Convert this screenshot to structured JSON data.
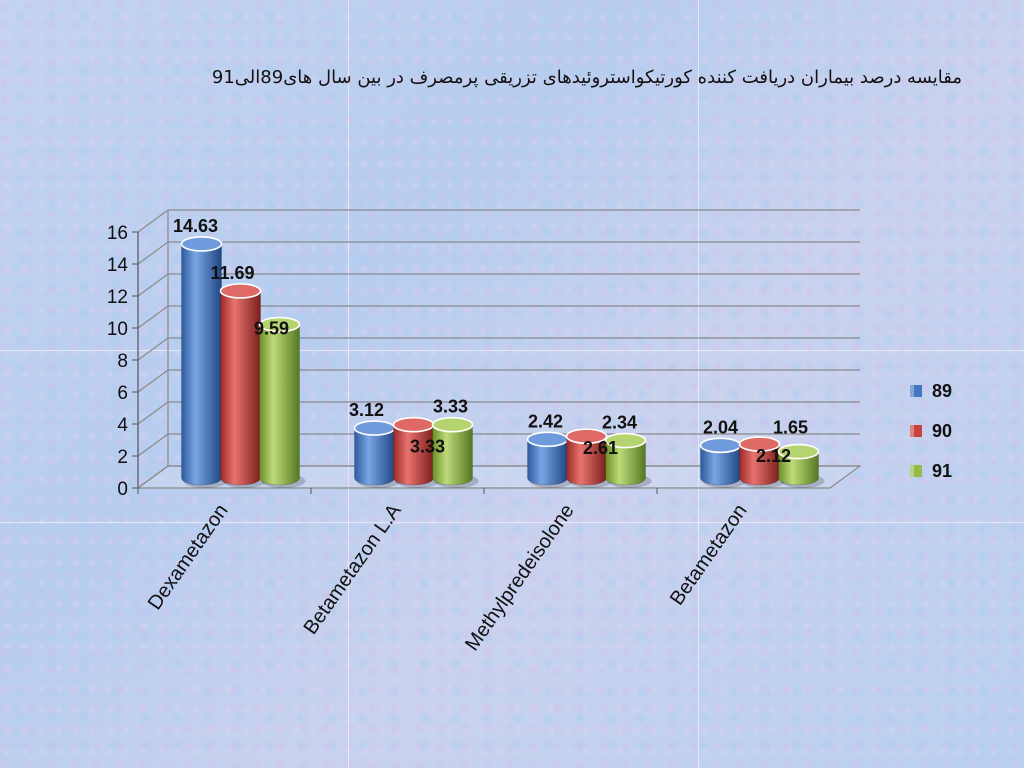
{
  "title": "مقایسه درصد بیماران دریافت کننده کورتیکواستروئیدهای تزریقی پرمصرف در بین سال های89الی91",
  "colors": {
    "89": "#4477c3",
    "90": "#c8423e",
    "91": "#94bb45"
  },
  "chart_data": {
    "type": "bar",
    "title": "مقایسه درصد بیماران دریافت کننده کورتیکواستروئیدهای تزریقی پرمصرف در بین سال های89الی91",
    "xlabel": "",
    "ylabel": "",
    "ylim": [
      0,
      16
    ],
    "yticks": [
      "0",
      "2",
      "4",
      "6",
      "8",
      "10",
      "12",
      "14",
      "16"
    ],
    "categories": [
      "Dexametazon",
      "Betametazon L.A",
      "Methylpredeisolone",
      "Betametazon"
    ],
    "series": [
      {
        "name": "89",
        "values": [
          14.63,
          3.12,
          2.42,
          2.04
        ]
      },
      {
        "name": "90",
        "values": [
          11.69,
          3.33,
          2.61,
          2.12
        ]
      },
      {
        "name": "91",
        "values": [
          9.59,
          3.33,
          2.34,
          1.65
        ]
      }
    ],
    "data_labels": [
      [
        "14.63",
        "3.12",
        "2.42",
        "2.04"
      ],
      [
        "11.69",
        "3.33",
        "2.61",
        "2.12"
      ],
      [
        "9.59",
        "3.33",
        "2.34",
        "1.65"
      ]
    ],
    "legend": {
      "placement": "right",
      "entries": [
        "89",
        "90",
        "91"
      ]
    },
    "grid": true,
    "style": "3d-cylinder"
  }
}
